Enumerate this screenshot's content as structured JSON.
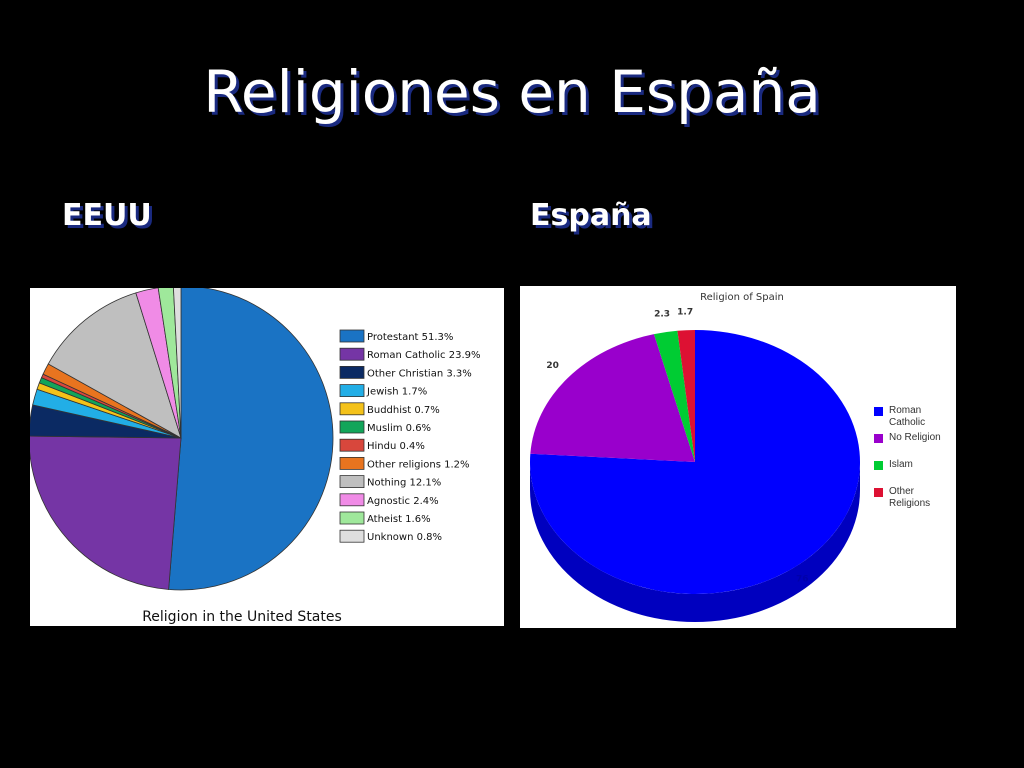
{
  "title": "Religiones en España",
  "headings": [
    "EEUU",
    "España"
  ],
  "chart_data": [
    {
      "type": "pie",
      "title": "Religion in the United States",
      "categories": [
        "Protestant 51.3%",
        "Roman Catholic 23.9%",
        "Other Christian 3.3%",
        "Jewish 1.7%",
        "Buddhist 0.7%",
        "Muslim 0.6%",
        "Hindu 0.4%",
        "Other religions 1.2%",
        "Nothing 12.1%",
        "Agnostic 2.4%",
        "Atheist 1.6%",
        "Unknown 0.8%"
      ],
      "values": [
        51.3,
        23.9,
        3.3,
        1.7,
        0.7,
        0.6,
        0.4,
        1.2,
        12.1,
        2.4,
        1.6,
        0.8
      ],
      "colors": [
        "#1a73c4",
        "#7535a5",
        "#0b2a63",
        "#22aee6",
        "#f4c21a",
        "#12a55a",
        "#d8473c",
        "#e8741f",
        "#bfbfbf",
        "#f08be6",
        "#9fe89b",
        "#dedede"
      ]
    },
    {
      "type": "pie3d",
      "title": "Religion of Spain",
      "categories": [
        "Roman Catholic",
        "No Religion",
        "Islam",
        "Other Religions"
      ],
      "values": [
        76,
        20,
        2.3,
        1.7
      ],
      "colors": [
        "#0000ff",
        "#9900cc",
        "#00cc33",
        "#dd1133"
      ]
    }
  ]
}
